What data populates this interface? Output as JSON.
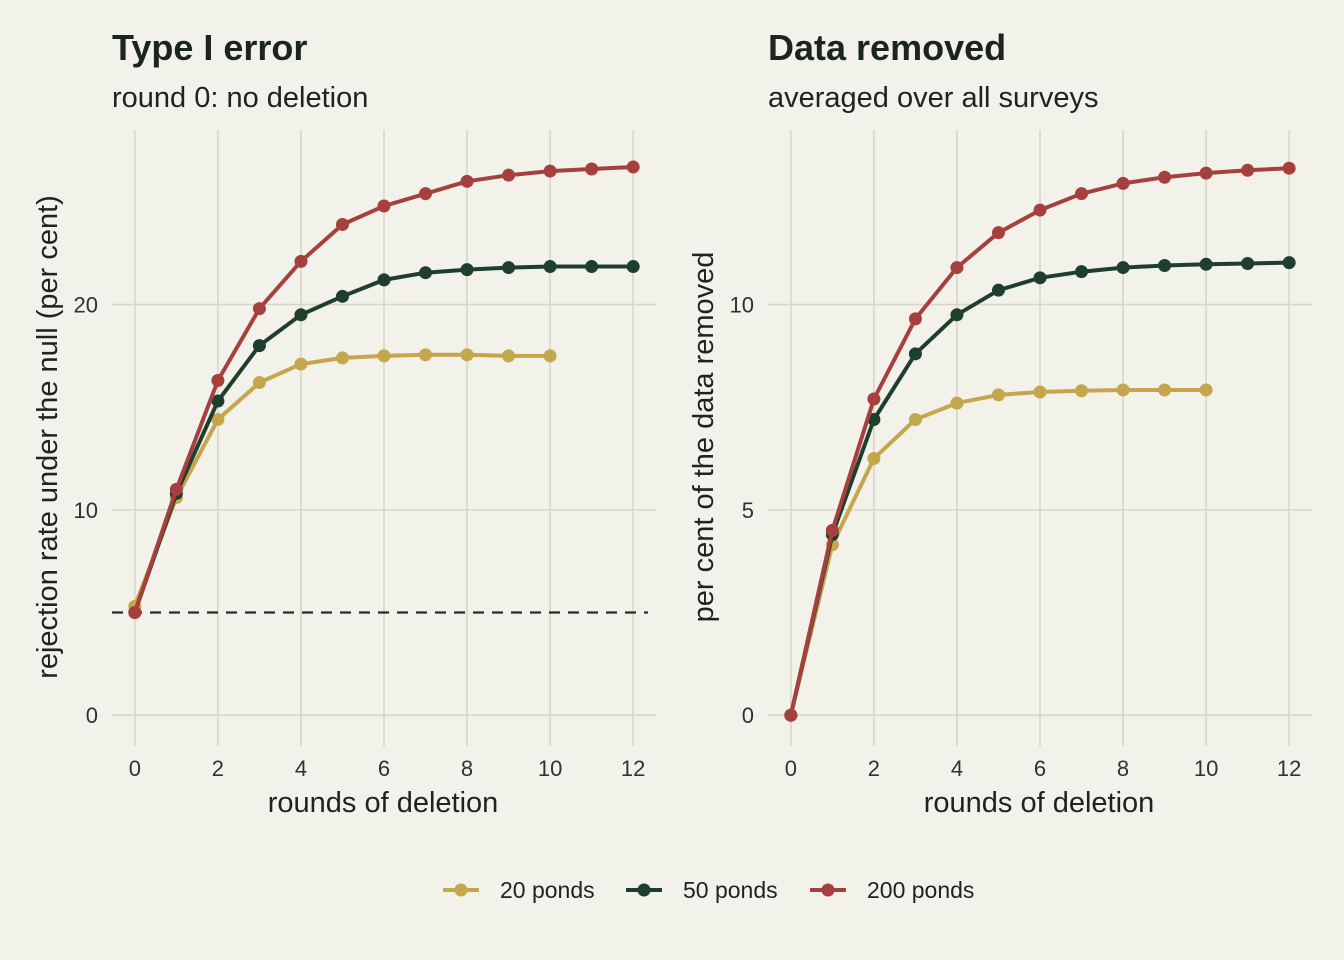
{
  "legend": [
    {
      "name": "20 ponds",
      "color": "#c4a64d"
    },
    {
      "name": "50 ponds",
      "color": "#1e3e2e"
    },
    {
      "name": "200 ponds",
      "color": "#a6403f"
    }
  ],
  "chart_data": [
    {
      "type": "line",
      "title": "Type I error",
      "subtitle": "round 0: no deletion",
      "xlabel": "rounds of deletion",
      "ylabel": "rejection rate under the null (per cent)",
      "xlim": [
        -0.55,
        12.55
      ],
      "ylim": [
        -1.5,
        28.5
      ],
      "xticks": [
        0,
        2,
        4,
        6,
        8,
        10,
        12
      ],
      "yticks": [
        0,
        10,
        20
      ],
      "xtick_labels": [
        "0",
        "2",
        "4",
        "6",
        "8",
        "10",
        "12"
      ],
      "ytick_labels": [
        "0",
        "10",
        "20"
      ],
      "grid": true,
      "reference_line": {
        "y": 5,
        "style": "dashed"
      },
      "series": [
        {
          "name": "20 ponds",
          "x": [
            0,
            1,
            2,
            3,
            4,
            5,
            6,
            7,
            8,
            9,
            10
          ],
          "values": [
            5.3,
            10.6,
            14.4,
            16.2,
            17.1,
            17.4,
            17.5,
            17.55,
            17.55,
            17.5,
            17.5
          ]
        },
        {
          "name": "50 ponds",
          "x": [
            0,
            1,
            2,
            3,
            4,
            5,
            6,
            7,
            8,
            9,
            10,
            11,
            12
          ],
          "values": [
            5.0,
            10.8,
            15.3,
            18.0,
            19.5,
            20.4,
            21.2,
            21.55,
            21.7,
            21.8,
            21.85,
            21.85,
            21.85
          ]
        },
        {
          "name": "200 ponds",
          "x": [
            0,
            1,
            2,
            3,
            4,
            5,
            6,
            7,
            8,
            9,
            10,
            11,
            12
          ],
          "values": [
            5.0,
            11.0,
            16.3,
            19.8,
            22.1,
            23.9,
            24.8,
            25.4,
            26.0,
            26.3,
            26.5,
            26.6,
            26.7
          ]
        }
      ]
    },
    {
      "type": "line",
      "title": "Data removed",
      "subtitle": "averaged over all surveys",
      "xlabel": "rounds of deletion",
      "ylabel": "per cent of the data removed",
      "xlim": [
        -0.55,
        12.55
      ],
      "ylim": [
        -0.75,
        14.25
      ],
      "xticks": [
        0,
        2,
        4,
        6,
        8,
        10,
        12
      ],
      "yticks": [
        0,
        5,
        10
      ],
      "xtick_labels": [
        "0",
        "2",
        "4",
        "6",
        "8",
        "10",
        "12"
      ],
      "ytick_labels": [
        "0",
        "5",
        "10"
      ],
      "grid": true,
      "series": [
        {
          "name": "20 ponds",
          "x": [
            0,
            1,
            2,
            3,
            4,
            5,
            6,
            7,
            8,
            9,
            10
          ],
          "values": [
            0.0,
            4.15,
            6.25,
            7.2,
            7.6,
            7.8,
            7.87,
            7.9,
            7.92,
            7.92,
            7.92
          ]
        },
        {
          "name": "50 ponds",
          "x": [
            0,
            1,
            2,
            3,
            4,
            5,
            6,
            7,
            8,
            9,
            10,
            11,
            12
          ],
          "values": [
            0.0,
            4.4,
            7.2,
            8.8,
            9.75,
            10.35,
            10.65,
            10.8,
            10.9,
            10.95,
            10.98,
            11.0,
            11.02
          ]
        },
        {
          "name": "200 ponds",
          "x": [
            0,
            1,
            2,
            3,
            4,
            5,
            6,
            7,
            8,
            9,
            10,
            11,
            12
          ],
          "values": [
            0.0,
            4.5,
            7.7,
            9.65,
            10.9,
            11.75,
            12.3,
            12.7,
            12.95,
            13.1,
            13.2,
            13.27,
            13.32
          ]
        }
      ]
    }
  ]
}
